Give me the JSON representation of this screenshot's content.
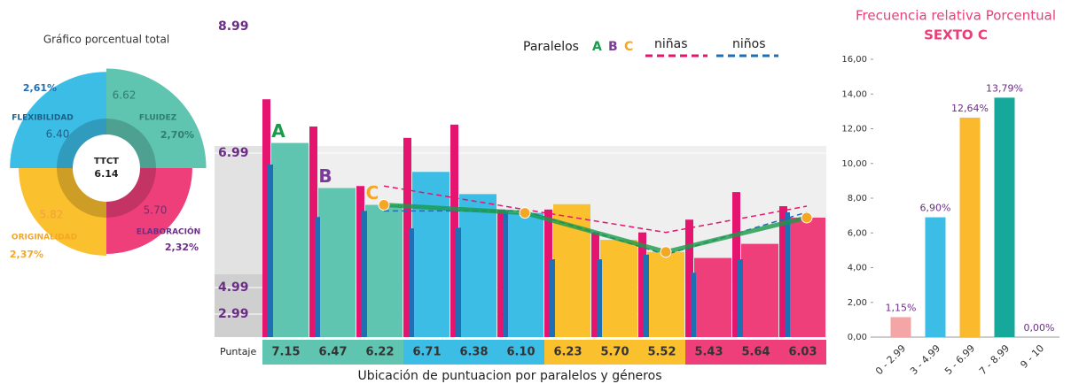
{
  "chart_data": [
    {
      "type": "polar",
      "title": "Gráfico porcentual total",
      "center_label": "TTCT",
      "center_value": 6.14,
      "categories": [
        "FLUIDEZ",
        "ELABORACIÓN",
        "ORIGINALIDAD",
        "FLEXIBILIDAD"
      ],
      "values": [
        6.62,
        5.7,
        5.82,
        6.4
      ],
      "value_labels": [
        "6.62",
        "5.70",
        "5.82",
        "6.40"
      ],
      "shares": [
        2.7,
        2.32,
        2.37,
        2.61
      ],
      "share_labels": [
        "2,70%",
        "2,32%",
        "2,37%",
        "2,61%"
      ],
      "colors": [
        "#5fc4b0",
        "#ee3f7a",
        "#fbc02d",
        "#3bbde6"
      ]
    },
    {
      "type": "grouped",
      "x_title": "Ubicación de puntuacion por paralelos y géneros",
      "row_label": "Puntaje",
      "legend_title": "Paralelos",
      "paralelos": [
        "A",
        "B",
        "C"
      ],
      "paralelo_colors": [
        "#1a9a4a",
        "#7b3b9a",
        "#f5a623"
      ],
      "group_colors": [
        "#5fc4b0",
        "#3bbde6",
        "#fbc02d",
        "#ee3f7a"
      ],
      "values": [
        7.15,
        6.47,
        6.22,
        6.71,
        6.38,
        6.1,
        6.23,
        5.7,
        5.52,
        5.43,
        5.64,
        6.03
      ],
      "value_labels": [
        "7.15",
        "6.47",
        "6.22",
        "6.71",
        "6.38",
        "6.10",
        "6.23",
        "5.70",
        "5.52",
        "5.43",
        "5.64",
        "6.03"
      ],
      "series": [
        {
          "name": "niñas",
          "color": "#e5156f",
          "values": [
            7.84,
            7.41,
            6.5,
            7.23,
            7.44,
            6.15,
            6.15,
            5.81,
            5.81,
            6.0,
            6.41,
            6.2
          ]
        },
        {
          "name": "niños",
          "color": "#1f6fb5",
          "values": [
            6.82,
            6.04,
            6.13,
            5.87,
            5.88,
            6.13,
            5.41,
            5.41,
            5.48,
            5.21,
            5.41,
            6.11
          ]
        }
      ],
      "ylim": [
        2.5,
        9.4
      ],
      "yticks": [
        2.99,
        4.99,
        6.99,
        8.99
      ]
    },
    {
      "type": "bar",
      "title": "Frecuencia relativa Porcentual",
      "subtitle": "SEXTO C",
      "categories": [
        "0 - 2.99",
        "3 - 4.99",
        "5 - 6.99",
        "7 - 8.99",
        "9 - 10"
      ],
      "values": [
        1.15,
        6.9,
        12.64,
        13.79,
        0.0
      ],
      "value_labels": [
        "1,15%",
        "6,90%",
        "12,64%",
        "13,79%",
        "0,00%"
      ],
      "colors": [
        "#f4a6a6",
        "#3bbde6",
        "#fbb92d",
        "#16a99b",
        "#16a99b"
      ],
      "ylim": [
        0,
        16
      ],
      "yticks": [
        {
          "value": 0,
          "label": "0,00"
        },
        {
          "value": 2,
          "label": "2,00"
        },
        {
          "value": 4,
          "label": "4,00"
        },
        {
          "value": 6,
          "label": "6,00"
        },
        {
          "value": 8,
          "label": "8,00"
        },
        {
          "value": 10,
          "label": "10,00"
        },
        {
          "value": 12,
          "label": "12,00"
        },
        {
          "value": 14,
          "label": "14,00"
        },
        {
          "value": 16,
          "label": "16,00"
        }
      ]
    }
  ]
}
